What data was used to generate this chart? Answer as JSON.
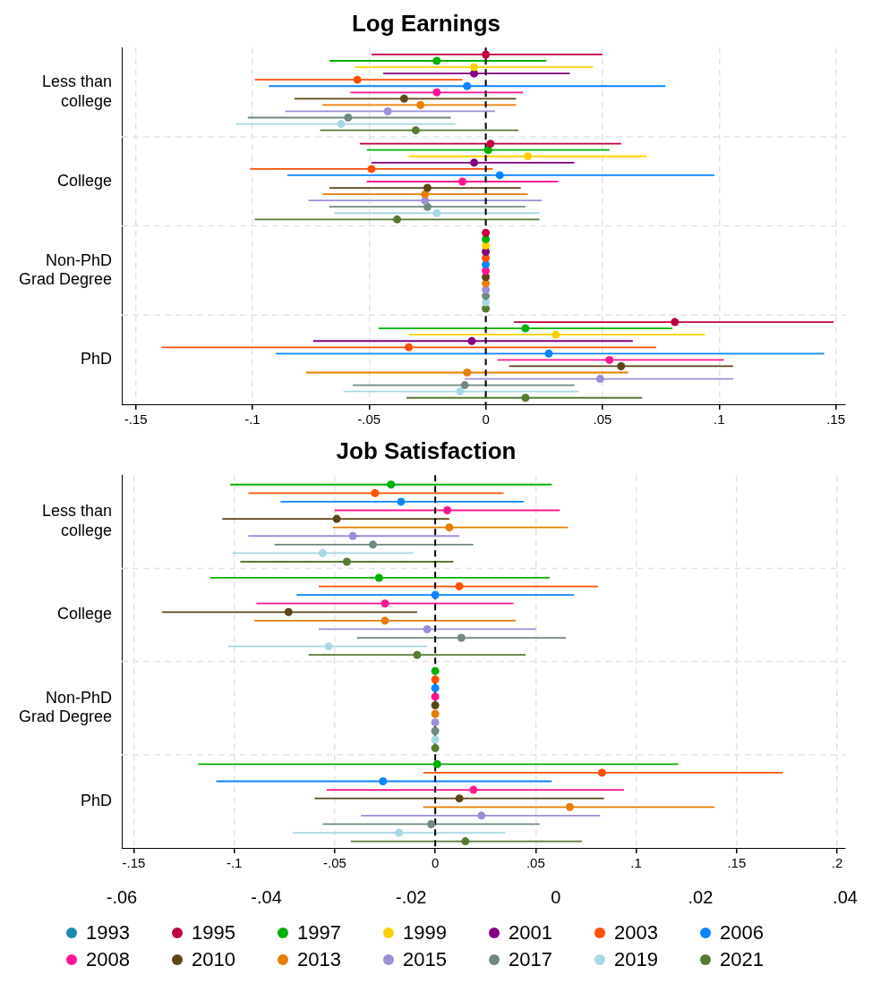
{
  "chart_data": [
    {
      "type": "scatter",
      "title": "Log Earnings",
      "orientation": "horizontal",
      "marker": "circle",
      "grid": true,
      "legend": false,
      "categories": [
        "Less than college",
        "College",
        "Non-PhD Grad Degree",
        "PhD"
      ],
      "xlim": [
        -0.156,
        0.154
      ],
      "xticks": [
        {
          "value": -0.15,
          "label": "-.15"
        },
        {
          "value": -0.1,
          "label": "-.1"
        },
        {
          "value": -0.05,
          "label": "-.05"
        },
        0,
        {
          "value": 0.05,
          "label": ".05"
        },
        {
          "value": 0.1,
          "label": ".1"
        },
        {
          "value": 0.15,
          "label": ".15"
        }
      ],
      "ref_lines": [
        {
          "axis": "x",
          "value": 0,
          "color": "#000000",
          "line_style": "dashed"
        }
      ],
      "series": [
        {
          "color": "#1a8aad",
          "values": [
            null,
            null,
            null,
            null
          ]
        },
        {
          "color": "#c0003c",
          "values": [
            0.0,
            0.002,
            0,
            0.081
          ],
          "errors": [
            [
              -0.049,
              0.05
            ],
            [
              -0.054,
              0.058
            ],
            null,
            [
              0.012,
              0.149
            ]
          ]
        },
        {
          "color": "#00b000",
          "values": [
            -0.021,
            0.001,
            0,
            0.017
          ],
          "errors": [
            [
              -0.067,
              0.026
            ],
            [
              -0.051,
              0.053
            ],
            null,
            [
              -0.046,
              0.08
            ]
          ]
        },
        {
          "color": "#ffd000",
          "values": [
            -0.005,
            0.018,
            0,
            0.03
          ],
          "errors": [
            [
              -0.056,
              0.046
            ],
            [
              -0.033,
              0.069
            ],
            null,
            [
              -0.033,
              0.094
            ]
          ]
        },
        {
          "color": "#800080",
          "values": [
            -0.005,
            -0.005,
            0,
            -0.006
          ],
          "errors": [
            [
              -0.044,
              0.036
            ],
            [
              -0.049,
              0.038
            ],
            null,
            [
              -0.074,
              0.063
            ]
          ]
        },
        {
          "color": "#ff4f00",
          "values": [
            -0.055,
            -0.049,
            0,
            -0.033
          ],
          "errors": [
            [
              -0.099,
              -0.01
            ],
            [
              -0.101,
              0.003
            ],
            null,
            [
              -0.139,
              0.073
            ]
          ]
        },
        {
          "color": "#0a84ff",
          "values": [
            -0.008,
            0.006,
            0,
            0.027
          ],
          "errors": [
            [
              -0.093,
              0.077
            ],
            [
              -0.085,
              0.098
            ],
            null,
            [
              -0.09,
              0.145
            ]
          ]
        },
        {
          "color": "#ff1493",
          "values": [
            -0.021,
            -0.01,
            0,
            0.053
          ],
          "errors": [
            [
              -0.058,
              0.016
            ],
            [
              -0.051,
              0.031
            ],
            null,
            [
              0.005,
              0.102
            ]
          ]
        },
        {
          "color": "#5c4516",
          "values": [
            -0.035,
            -0.025,
            0,
            0.058
          ],
          "errors": [
            [
              -0.082,
              0.013
            ],
            [
              -0.067,
              0.015
            ],
            null,
            [
              0.01,
              0.106
            ]
          ]
        },
        {
          "color": "#e67e00",
          "values": [
            -0.028,
            -0.026,
            0,
            -0.008
          ],
          "errors": [
            [
              -0.07,
              0.013
            ],
            [
              -0.07,
              0.018
            ],
            null,
            [
              -0.077,
              0.061
            ]
          ]
        },
        {
          "color": "#9b8fd8",
          "values": [
            -0.042,
            -0.026,
            0,
            0.049
          ],
          "errors": [
            [
              -0.086,
              0.004
            ],
            [
              -0.076,
              0.024
            ],
            null,
            [
              -0.009,
              0.106
            ]
          ]
        },
        {
          "color": "#6e8b7e",
          "values": [
            -0.059,
            -0.025,
            0,
            -0.009
          ],
          "errors": [
            [
              -0.102,
              -0.015
            ],
            [
              -0.067,
              0.017
            ],
            null,
            [
              -0.057,
              0.038
            ]
          ]
        },
        {
          "color": "#a8d8e4",
          "values": [
            -0.062,
            -0.021,
            0,
            -0.011
          ],
          "errors": [
            [
              -0.107,
              -0.013
            ],
            [
              -0.065,
              0.023
            ],
            null,
            [
              -0.061,
              0.04
            ]
          ]
        },
        {
          "color": "#557a32",
          "values": [
            -0.03,
            -0.038,
            0,
            0.017
          ],
          "errors": [
            [
              -0.071,
              0.014
            ],
            [
              -0.099,
              0.023
            ],
            null,
            [
              -0.034,
              0.067
            ]
          ]
        }
      ]
    },
    {
      "type": "scatter",
      "title": "Job Satisfaction",
      "orientation": "horizontal",
      "marker": "circle",
      "grid": true,
      "legend": "bottom",
      "categories": [
        "Less than college",
        "College",
        "Non-PhD Grad Degree",
        "PhD"
      ],
      "xlim": [
        -0.156,
        0.204
      ],
      "xticks": [
        {
          "value": -0.15,
          "label": "-.15"
        },
        {
          "value": -0.1,
          "label": "-.1"
        },
        {
          "value": -0.05,
          "label": "-.05"
        },
        0,
        {
          "value": 0.05,
          "label": ".05"
        },
        {
          "value": 0.1,
          "label": ".1"
        },
        {
          "value": 0.15,
          "label": ".15"
        },
        {
          "value": 0.2,
          "label": ".2"
        }
      ],
      "x2lim": [
        -0.06,
        0.04
      ],
      "x2ticks": [
        {
          "value": -0.06,
          "label": "-.06"
        },
        {
          "value": -0.04,
          "label": "-.04"
        },
        {
          "value": -0.02,
          "label": "-.02"
        },
        0,
        {
          "value": 0.02,
          "label": ".02"
        },
        {
          "value": 0.04,
          "label": ".04"
        }
      ],
      "ref_lines": [
        {
          "axis": "x",
          "value": 0,
          "color": "#000000",
          "line_style": "dashed"
        }
      ],
      "series": [
        {
          "name": "1993",
          "color": "#1a8aad",
          "values": [
            null,
            null,
            null,
            null
          ]
        },
        {
          "name": "1995",
          "color": "#c0003c",
          "values": [
            null,
            null,
            null,
            null
          ]
        },
        {
          "name": "1997",
          "color": "#00b000",
          "values": [
            -0.022,
            -0.028,
            0,
            0.001
          ],
          "errors": [
            [
              -0.102,
              0.058
            ],
            [
              -0.112,
              0.057
            ],
            null,
            [
              -0.118,
              0.121
            ]
          ]
        },
        {
          "name": "1999",
          "color": "#ffd000",
          "values": [
            null,
            null,
            null,
            null
          ]
        },
        {
          "name": "2001",
          "color": "#800080",
          "values": [
            null,
            null,
            null,
            null
          ]
        },
        {
          "name": "2003",
          "color": "#ff4f00",
          "values": [
            -0.03,
            0.012,
            0,
            0.083
          ],
          "errors": [
            [
              -0.093,
              0.034
            ],
            [
              -0.058,
              0.081
            ],
            null,
            [
              -0.006,
              0.173
            ]
          ]
        },
        {
          "name": "2006",
          "color": "#0a84ff",
          "values": [
            -0.017,
            0.0,
            0,
            -0.026
          ],
          "errors": [
            [
              -0.077,
              0.044
            ],
            [
              -0.069,
              0.069
            ],
            null,
            [
              -0.109,
              0.058
            ]
          ]
        },
        {
          "name": "2008",
          "color": "#ff1493",
          "values": [
            0.006,
            -0.025,
            0,
            0.019
          ],
          "errors": [
            [
              -0.05,
              0.062
            ],
            [
              -0.089,
              0.039
            ],
            null,
            [
              -0.054,
              0.094
            ]
          ]
        },
        {
          "name": "2010",
          "color": "#5c4516",
          "values": [
            -0.049,
            -0.073,
            0,
            0.012
          ],
          "errors": [
            [
              -0.106,
              0.007
            ],
            [
              -0.136,
              -0.009
            ],
            null,
            [
              -0.06,
              0.084
            ]
          ]
        },
        {
          "name": "2013",
          "color": "#e67e00",
          "values": [
            0.007,
            -0.025,
            0,
            0.067
          ],
          "errors": [
            [
              -0.051,
              0.066
            ],
            [
              -0.09,
              0.04
            ],
            null,
            [
              -0.006,
              0.139
            ]
          ]
        },
        {
          "name": "2015",
          "color": "#9b8fd8",
          "values": [
            -0.041,
            -0.004,
            0,
            0.023
          ],
          "errors": [
            [
              -0.093,
              0.012
            ],
            [
              -0.058,
              0.05
            ],
            null,
            [
              -0.037,
              0.082
            ]
          ]
        },
        {
          "name": "2017",
          "color": "#6e8b7e",
          "values": [
            -0.031,
            0.013,
            0,
            -0.002
          ],
          "errors": [
            [
              -0.08,
              0.019
            ],
            [
              -0.039,
              0.065
            ],
            null,
            [
              -0.056,
              0.052
            ]
          ]
        },
        {
          "name": "2019",
          "color": "#a8d8e4",
          "values": [
            -0.056,
            -0.053,
            0,
            -0.018
          ],
          "errors": [
            [
              -0.101,
              -0.011
            ],
            [
              -0.103,
              -0.004
            ],
            null,
            [
              -0.071,
              0.035
            ]
          ]
        },
        {
          "name": "2021",
          "color": "#557a32",
          "values": [
            -0.044,
            -0.009,
            0,
            0.015
          ],
          "errors": [
            [
              -0.097,
              0.009
            ],
            [
              -0.063,
              0.045
            ],
            null,
            [
              -0.042,
              0.073
            ]
          ]
        }
      ]
    }
  ]
}
